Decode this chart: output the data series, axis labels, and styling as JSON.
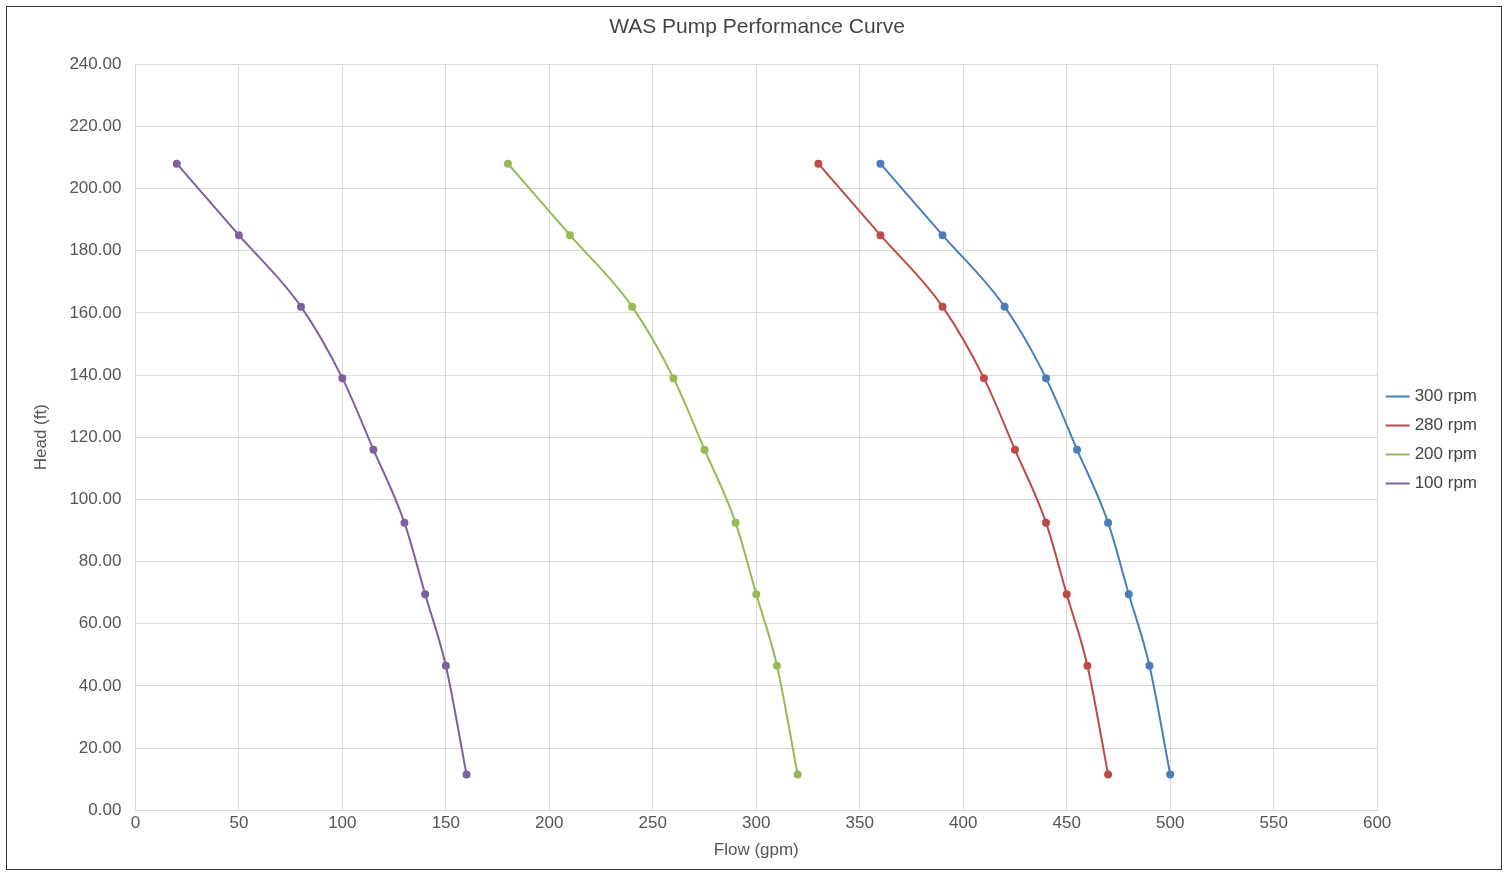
{
  "chart_data": {
    "type": "line",
    "title": "WAS Pump Performance Curve",
    "xlabel": "Flow (gpm)",
    "ylabel": "Head (ft)",
    "xlim": [
      0,
      600
    ],
    "xticks": [
      0,
      50,
      100,
      150,
      200,
      250,
      300,
      350,
      400,
      450,
      500,
      550,
      600
    ],
    "ylim": [
      0,
      240
    ],
    "yticks": [
      {
        "value": 0,
        "label": "0.00"
      },
      {
        "value": 20,
        "label": "20.00"
      },
      {
        "value": 40,
        "label": "40.00"
      },
      {
        "value": 60,
        "label": "60.00"
      },
      {
        "value": 80,
        "label": "80.00"
      },
      {
        "value": 100,
        "label": "100.00"
      },
      {
        "value": 120,
        "label": "120.00"
      },
      {
        "value": 140,
        "label": "140.00"
      },
      {
        "value": 160,
        "label": "160.00"
      },
      {
        "value": 180,
        "label": "180.00"
      },
      {
        "value": 200,
        "label": "200.00"
      },
      {
        "value": 220,
        "label": "220.00"
      },
      {
        "value": 240,
        "label": "240.00"
      }
    ],
    "grid": true,
    "legend": "right",
    "marker": "circle",
    "line_style": "solid",
    "series": [
      {
        "name": "300 rpm",
        "color": "#4a7ebb",
        "x": [
          360,
          390,
          420,
          440,
          455,
          470,
          480,
          490,
          500
        ],
        "values": [
          208,
          185,
          162,
          139,
          116,
          92.5,
          69.5,
          46.5,
          11.5
        ]
      },
      {
        "name": "280 rpm",
        "color": "#be4b48",
        "x": [
          330,
          360,
          390,
          410,
          425,
          440,
          450,
          460,
          470
        ],
        "values": [
          208,
          185,
          162,
          139,
          116,
          92.5,
          69.5,
          46.5,
          11.5
        ]
      },
      {
        "name": "200 rpm",
        "color": "#98b954",
        "x": [
          180,
          210,
          240,
          260,
          275,
          290,
          300,
          310,
          320
        ],
        "values": [
          208,
          185,
          162,
          139,
          116,
          92.5,
          69.5,
          46.5,
          11.5
        ]
      },
      {
        "name": "100 rpm",
        "color": "#7d60a0",
        "x": [
          20,
          50,
          80,
          100,
          115,
          130,
          140,
          150,
          160
        ],
        "values": [
          208,
          185,
          162,
          139,
          116,
          92.5,
          69.5,
          46.5,
          11.5
        ]
      }
    ]
  }
}
